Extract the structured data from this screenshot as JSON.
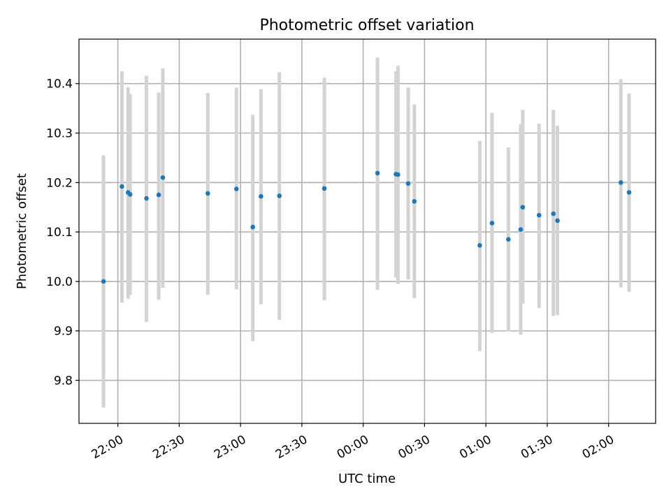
{
  "chart_data": {
    "type": "scatter",
    "title": "Photometric offset variation",
    "xlabel": "UTC time",
    "ylabel": "Photometric offset",
    "x_ticks": [
      {
        "value": "22:00",
        "label": "22:00"
      },
      {
        "value": "22:30",
        "label": "22:30"
      },
      {
        "value": "23:00",
        "label": "23:00"
      },
      {
        "value": "23:30",
        "label": "23:30"
      },
      {
        "value": "24:00",
        "label": "00:00"
      },
      {
        "value": "24:30",
        "label": "00:30"
      },
      {
        "value": "25:00",
        "label": "01:00"
      },
      {
        "value": "25:30",
        "label": "01:30"
      },
      {
        "value": "26:00",
        "label": "02:00"
      }
    ],
    "y_ticks": [
      9.8,
      9.9,
      10.0,
      10.1,
      10.2,
      10.3,
      10.4
    ],
    "xlim": [
      "21:41",
      "26:23"
    ],
    "ylim": [
      9.713,
      10.49
    ],
    "grid": true,
    "colors": {
      "points": "#1f77b4",
      "errorbars": "#d3d3d3"
    },
    "points": [
      {
        "x": "21:53",
        "y": 10.0,
        "yerr_low": 9.745,
        "yerr_high": 10.255
      },
      {
        "x": "22:02",
        "y": 10.192,
        "yerr_low": 9.957,
        "yerr_high": 10.425
      },
      {
        "x": "22:05",
        "y": 10.18,
        "yerr_low": 9.965,
        "yerr_high": 10.393
      },
      {
        "x": "22:06",
        "y": 10.176,
        "yerr_low": 9.973,
        "yerr_high": 10.379
      },
      {
        "x": "22:14",
        "y": 10.168,
        "yerr_low": 9.918,
        "yerr_high": 10.416
      },
      {
        "x": "22:20",
        "y": 10.175,
        "yerr_low": 9.963,
        "yerr_high": 10.382
      },
      {
        "x": "22:22",
        "y": 10.21,
        "yerr_low": 9.987,
        "yerr_high": 10.431
      },
      {
        "x": "22:44",
        "y": 10.178,
        "yerr_low": 9.973,
        "yerr_high": 10.381
      },
      {
        "x": "22:58",
        "y": 10.187,
        "yerr_low": 9.984,
        "yerr_high": 10.392
      },
      {
        "x": "23:06",
        "y": 10.11,
        "yerr_low": 9.879,
        "yerr_high": 10.337
      },
      {
        "x": "23:10",
        "y": 10.172,
        "yerr_low": 9.954,
        "yerr_high": 10.389
      },
      {
        "x": "23:19",
        "y": 10.173,
        "yerr_low": 9.922,
        "yerr_high": 10.423
      },
      {
        "x": "23:41",
        "y": 10.188,
        "yerr_low": 9.962,
        "yerr_high": 10.412
      },
      {
        "x": "24:07",
        "y": 10.219,
        "yerr_low": 9.983,
        "yerr_high": 10.453
      },
      {
        "x": "24:16",
        "y": 10.217,
        "yerr_low": 10.008,
        "yerr_high": 10.425
      },
      {
        "x": "24:17",
        "y": 10.216,
        "yerr_low": 9.995,
        "yerr_high": 10.436
      },
      {
        "x": "24:22",
        "y": 10.198,
        "yerr_low": 10.004,
        "yerr_high": 10.392
      },
      {
        "x": "24:25",
        "y": 10.162,
        "yerr_low": 9.966,
        "yerr_high": 10.358
      },
      {
        "x": "24:57",
        "y": 10.073,
        "yerr_low": 9.859,
        "yerr_high": 10.284
      },
      {
        "x": "25:03",
        "y": 10.118,
        "yerr_low": 9.896,
        "yerr_high": 10.341
      },
      {
        "x": "25:11",
        "y": 10.085,
        "yerr_low": 9.899,
        "yerr_high": 10.271
      },
      {
        "x": "25:17",
        "y": 10.105,
        "yerr_low": 9.892,
        "yerr_high": 10.318
      },
      {
        "x": "25:18",
        "y": 10.15,
        "yerr_low": 9.955,
        "yerr_high": 10.347
      },
      {
        "x": "25:26",
        "y": 10.134,
        "yerr_low": 9.946,
        "yerr_high": 10.319
      },
      {
        "x": "25:33",
        "y": 10.137,
        "yerr_low": 9.93,
        "yerr_high": 10.347
      },
      {
        "x": "25:35",
        "y": 10.123,
        "yerr_low": 9.932,
        "yerr_high": 10.315
      },
      {
        "x": "26:06",
        "y": 10.2,
        "yerr_low": 9.988,
        "yerr_high": 10.409
      },
      {
        "x": "26:10",
        "y": 10.18,
        "yerr_low": 9.979,
        "yerr_high": 10.38
      }
    ]
  }
}
